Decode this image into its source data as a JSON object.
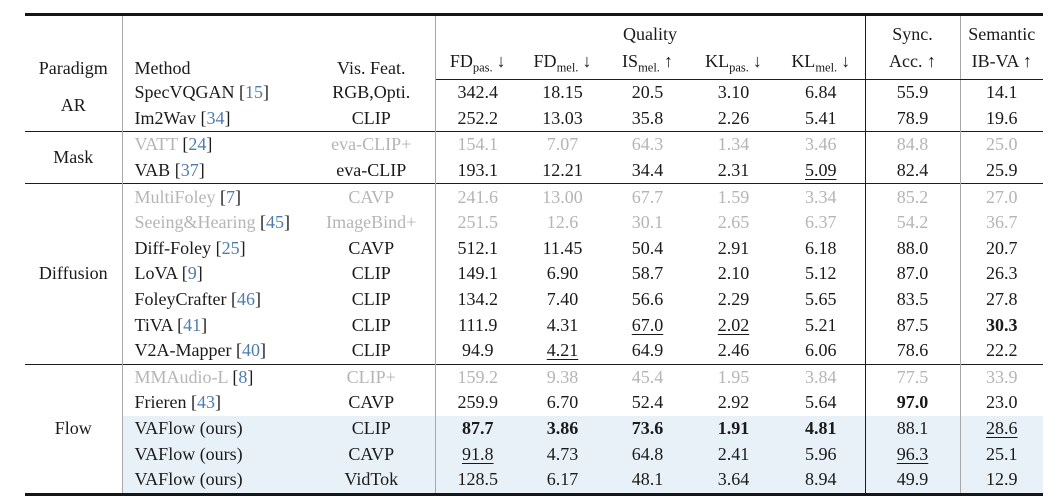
{
  "table": {
    "header": {
      "paradigm": "Paradigm",
      "method": "Method",
      "vis_feat": "Vis. Feat.",
      "quality_group": "Quality",
      "sync_line1": "Sync.",
      "sync_line2": "Acc. ↑",
      "semantic_line1": "Semantic",
      "semantic_line2": "IB-VA ↑",
      "metrics": [
        {
          "name": "FD",
          "sub": "pas.",
          "arrow": "↓"
        },
        {
          "name": "FD",
          "sub": "mel.",
          "arrow": "↓"
        },
        {
          "name": "IS",
          "sub": "mel.",
          "arrow": "↑"
        },
        {
          "name": "KL",
          "sub": "pas.",
          "arrow": "↓"
        },
        {
          "name": "KL",
          "sub": "mel.",
          "arrow": "↓"
        }
      ]
    },
    "colors": {
      "highlight_row_bg": "#e8f1f8",
      "grayed_text": "#b5b5b5",
      "citation_blue": "#4e7cae",
      "rule_black": "#1d1d1d",
      "rule_gray": "#a8a8a8"
    },
    "groups": [
      {
        "paradigm": "AR",
        "rows": [
          {
            "method": "SpecVQGAN",
            "cite": "15",
            "vis": "RGB,Opti.",
            "gray": false,
            "hl": false,
            "cells": [
              {
                "t": "342.4",
                "s": ""
              },
              {
                "t": "18.15",
                "s": ""
              },
              {
                "t": "20.5",
                "s": ""
              },
              {
                "t": "3.10",
                "s": ""
              },
              {
                "t": "6.84",
                "s": ""
              },
              {
                "t": "55.9",
                "s": ""
              },
              {
                "t": "14.1",
                "s": ""
              }
            ]
          },
          {
            "method": "Im2Wav",
            "cite": "34",
            "vis": "CLIP",
            "gray": false,
            "hl": false,
            "cells": [
              {
                "t": "252.2",
                "s": ""
              },
              {
                "t": "13.03",
                "s": ""
              },
              {
                "t": "35.8",
                "s": ""
              },
              {
                "t": "2.26",
                "s": ""
              },
              {
                "t": "5.41",
                "s": ""
              },
              {
                "t": "78.9",
                "s": ""
              },
              {
                "t": "19.6",
                "s": ""
              }
            ]
          }
        ]
      },
      {
        "paradigm": "Mask",
        "rows": [
          {
            "method": "VATT",
            "cite": "24",
            "vis": "eva-CLIP+",
            "gray": true,
            "hl": false,
            "cells": [
              {
                "t": "154.1",
                "s": ""
              },
              {
                "t": "7.07",
                "s": ""
              },
              {
                "t": "64.3",
                "s": ""
              },
              {
                "t": "1.34",
                "s": ""
              },
              {
                "t": "3.46",
                "s": ""
              },
              {
                "t": "84.8",
                "s": ""
              },
              {
                "t": "25.0",
                "s": ""
              }
            ]
          },
          {
            "method": "VAB",
            "cite": "37",
            "vis": "eva-CLIP",
            "gray": false,
            "hl": false,
            "cells": [
              {
                "t": "193.1",
                "s": ""
              },
              {
                "t": "12.21",
                "s": ""
              },
              {
                "t": "34.4",
                "s": ""
              },
              {
                "t": "2.31",
                "s": ""
              },
              {
                "t": "5.09",
                "s": "u"
              },
              {
                "t": "82.4",
                "s": ""
              },
              {
                "t": "25.9",
                "s": ""
              }
            ]
          }
        ]
      },
      {
        "paradigm": "Diffusion",
        "rows": [
          {
            "method": "MultiFoley",
            "cite": "7",
            "vis": "CAVP",
            "gray": true,
            "hl": false,
            "cells": [
              {
                "t": "241.6",
                "s": ""
              },
              {
                "t": "13.00",
                "s": ""
              },
              {
                "t": "67.7",
                "s": ""
              },
              {
                "t": "1.59",
                "s": ""
              },
              {
                "t": "3.34",
                "s": ""
              },
              {
                "t": "85.2",
                "s": ""
              },
              {
                "t": "27.0",
                "s": ""
              }
            ]
          },
          {
            "method": "Seeing&Hearing",
            "cite": "45",
            "vis": "ImageBind+",
            "gray": true,
            "hl": false,
            "cells": [
              {
                "t": "251.5",
                "s": ""
              },
              {
                "t": "12.6",
                "s": ""
              },
              {
                "t": "30.1",
                "s": ""
              },
              {
                "t": "2.65",
                "s": ""
              },
              {
                "t": "6.37",
                "s": ""
              },
              {
                "t": "54.2",
                "s": ""
              },
              {
                "t": "36.7",
                "s": ""
              }
            ]
          },
          {
            "method": "Diff-Foley",
            "cite": "25",
            "vis": "CAVP",
            "gray": false,
            "hl": false,
            "cells": [
              {
                "t": "512.1",
                "s": ""
              },
              {
                "t": "11.45",
                "s": ""
              },
              {
                "t": "50.4",
                "s": ""
              },
              {
                "t": "2.91",
                "s": ""
              },
              {
                "t": "6.18",
                "s": ""
              },
              {
                "t": "88.0",
                "s": ""
              },
              {
                "t": "20.7",
                "s": ""
              }
            ]
          },
          {
            "method": "LoVA",
            "cite": "9",
            "vis": "CLIP",
            "gray": false,
            "hl": false,
            "cells": [
              {
                "t": "149.1",
                "s": ""
              },
              {
                "t": "6.90",
                "s": ""
              },
              {
                "t": "58.7",
                "s": ""
              },
              {
                "t": "2.10",
                "s": ""
              },
              {
                "t": "5.12",
                "s": ""
              },
              {
                "t": "87.0",
                "s": ""
              },
              {
                "t": "26.3",
                "s": ""
              }
            ]
          },
          {
            "method": "FoleyCrafter",
            "cite": "46",
            "vis": "CLIP",
            "gray": false,
            "hl": false,
            "cells": [
              {
                "t": "134.2",
                "s": ""
              },
              {
                "t": "7.40",
                "s": ""
              },
              {
                "t": "56.6",
                "s": ""
              },
              {
                "t": "2.29",
                "s": ""
              },
              {
                "t": "5.65",
                "s": ""
              },
              {
                "t": "83.5",
                "s": ""
              },
              {
                "t": "27.8",
                "s": ""
              }
            ]
          },
          {
            "method": "TiVA",
            "cite": "41",
            "vis": "CLIP",
            "gray": false,
            "hl": false,
            "cells": [
              {
                "t": "111.9",
                "s": ""
              },
              {
                "t": "4.31",
                "s": ""
              },
              {
                "t": "67.0",
                "s": "u"
              },
              {
                "t": "2.02",
                "s": "u"
              },
              {
                "t": "5.21",
                "s": ""
              },
              {
                "t": "87.5",
                "s": ""
              },
              {
                "t": "30.3",
                "s": "b"
              }
            ]
          },
          {
            "method": "V2A-Mapper",
            "cite": "40",
            "vis": "CLIP",
            "gray": false,
            "hl": false,
            "cells": [
              {
                "t": "94.9",
                "s": ""
              },
              {
                "t": "4.21",
                "s": "u"
              },
              {
                "t": "64.9",
                "s": ""
              },
              {
                "t": "2.46",
                "s": ""
              },
              {
                "t": "6.06",
                "s": ""
              },
              {
                "t": "78.6",
                "s": ""
              },
              {
                "t": "22.2",
                "s": ""
              }
            ]
          }
        ]
      },
      {
        "paradigm": "Flow",
        "rows": [
          {
            "method": "MMAudio-L",
            "cite": "8",
            "vis": "CLIP+",
            "gray": true,
            "hl": false,
            "cells": [
              {
                "t": "159.2",
                "s": ""
              },
              {
                "t": "9.38",
                "s": ""
              },
              {
                "t": "45.4",
                "s": ""
              },
              {
                "t": "1.95",
                "s": ""
              },
              {
                "t": "3.84",
                "s": ""
              },
              {
                "t": "77.5",
                "s": ""
              },
              {
                "t": "33.9",
                "s": ""
              }
            ]
          },
          {
            "method": "Frieren",
            "cite": "43",
            "vis": "CAVP",
            "gray": false,
            "hl": false,
            "cells": [
              {
                "t": "259.9",
                "s": ""
              },
              {
                "t": "6.70",
                "s": ""
              },
              {
                "t": "52.4",
                "s": ""
              },
              {
                "t": "2.92",
                "s": ""
              },
              {
                "t": "5.64",
                "s": ""
              },
              {
                "t": "97.0",
                "s": "b"
              },
              {
                "t": "23.0",
                "s": ""
              }
            ]
          },
          {
            "method": "VAFlow (ours)",
            "cite": "",
            "vis": "CLIP",
            "gray": false,
            "hl": true,
            "cells": [
              {
                "t": "87.7",
                "s": "b"
              },
              {
                "t": "3.86",
                "s": "b"
              },
              {
                "t": "73.6",
                "s": "b"
              },
              {
                "t": "1.91",
                "s": "b"
              },
              {
                "t": "4.81",
                "s": "b"
              },
              {
                "t": "88.1",
                "s": ""
              },
              {
                "t": "28.6",
                "s": "u"
              }
            ]
          },
          {
            "method": "VAFlow (ours)",
            "cite": "",
            "vis": "CAVP",
            "gray": false,
            "hl": true,
            "cells": [
              {
                "t": "91.8",
                "s": "u"
              },
              {
                "t": "4.73",
                "s": ""
              },
              {
                "t": "64.8",
                "s": ""
              },
              {
                "t": "2.41",
                "s": ""
              },
              {
                "t": "5.96",
                "s": ""
              },
              {
                "t": "96.3",
                "s": "u"
              },
              {
                "t": "25.1",
                "s": ""
              }
            ]
          },
          {
            "method": "VAFlow (ours)",
            "cite": "",
            "vis": "VidTok",
            "gray": false,
            "hl": true,
            "cells": [
              {
                "t": "128.5",
                "s": ""
              },
              {
                "t": "6.17",
                "s": ""
              },
              {
                "t": "48.1",
                "s": ""
              },
              {
                "t": "3.64",
                "s": ""
              },
              {
                "t": "8.94",
                "s": ""
              },
              {
                "t": "49.9",
                "s": ""
              },
              {
                "t": "12.9",
                "s": ""
              }
            ]
          }
        ]
      }
    ]
  }
}
